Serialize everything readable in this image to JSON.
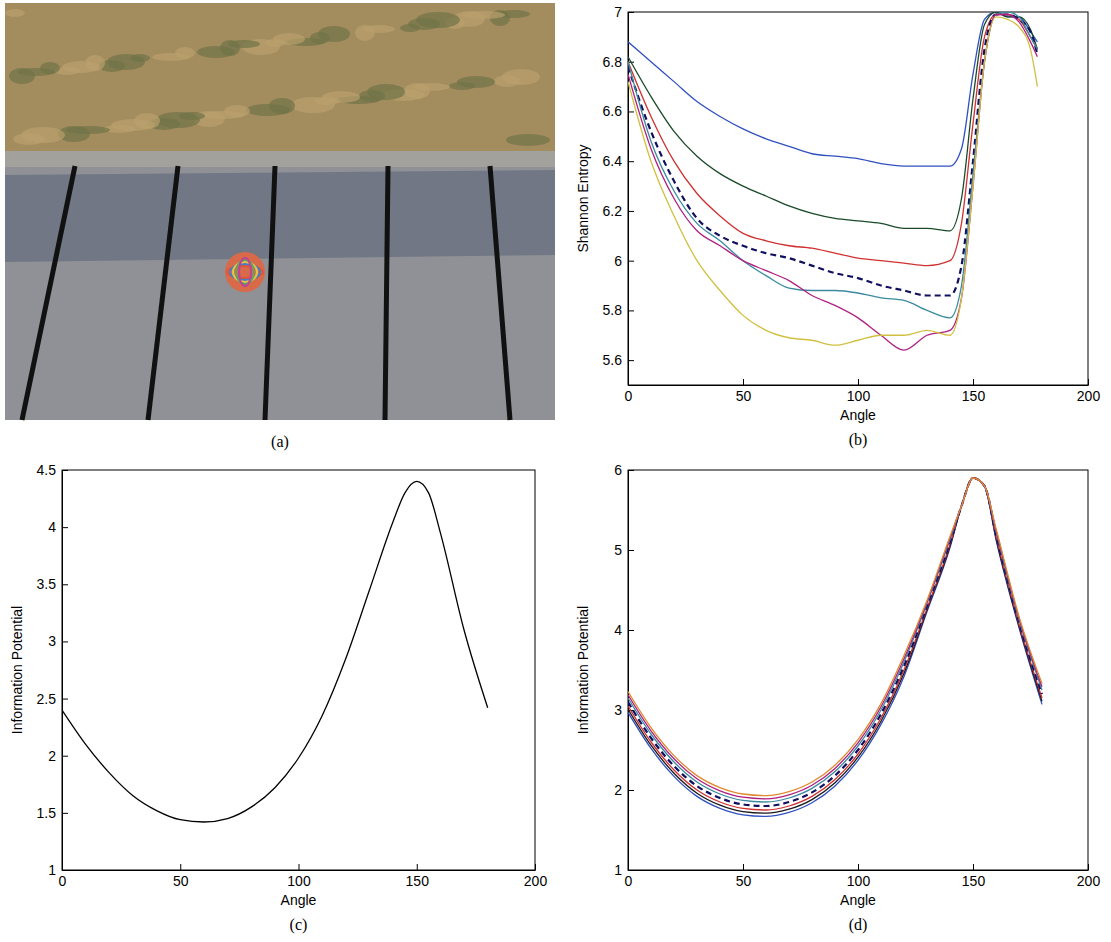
{
  "photo": {
    "caption": "(a)"
  },
  "chart_data": [
    {
      "type": "line",
      "caption": "(b)",
      "x_label": "Angle",
      "y_label": "Shannon Entropy",
      "xlim": [
        0,
        200
      ],
      "ylim": [
        5.5,
        7
      ],
      "xticks": [
        0,
        50,
        100,
        150,
        200
      ],
      "yticks": [
        5.6,
        5.8,
        6,
        6.2,
        6.4,
        6.6,
        6.8,
        7
      ],
      "x": [
        0,
        10,
        20,
        30,
        40,
        50,
        60,
        70,
        80,
        90,
        100,
        110,
        120,
        130,
        140,
        145,
        150,
        155,
        160,
        165,
        170,
        175,
        178
      ],
      "series": [
        {
          "color": "#3050c0",
          "line_style": "solid",
          "values": [
            6.88,
            6.8,
            6.72,
            6.64,
            6.58,
            6.53,
            6.49,
            6.46,
            6.43,
            6.42,
            6.41,
            6.39,
            6.38,
            6.38,
            6.38,
            6.45,
            6.75,
            6.97,
            7.0,
            6.98,
            6.98,
            6.92,
            6.88
          ]
        },
        {
          "color": "#1a4a2a",
          "line_style": "solid",
          "values": [
            6.82,
            6.66,
            6.52,
            6.42,
            6.35,
            6.3,
            6.26,
            6.22,
            6.19,
            6.17,
            6.16,
            6.15,
            6.13,
            6.13,
            6.12,
            6.25,
            6.65,
            6.95,
            7.0,
            6.98,
            6.98,
            6.93,
            6.85
          ]
        },
        {
          "color": "#d03030",
          "line_style": "solid",
          "values": [
            6.8,
            6.58,
            6.4,
            6.27,
            6.18,
            6.11,
            6.08,
            6.06,
            6.05,
            6.03,
            6.01,
            6.0,
            5.99,
            5.98,
            6.0,
            6.15,
            6.55,
            6.9,
            6.99,
            6.99,
            6.97,
            6.9,
            6.85
          ]
        },
        {
          "color": "#101060",
          "line_style": "dashed",
          "values": [
            6.78,
            6.52,
            6.32,
            6.17,
            6.1,
            6.06,
            6.03,
            6.01,
            5.98,
            5.95,
            5.93,
            5.9,
            5.88,
            5.86,
            5.86,
            5.98,
            6.4,
            6.85,
            6.99,
            6.99,
            6.97,
            6.92,
            6.83
          ]
        },
        {
          "color": "#3a8aa0",
          "line_style": "solid",
          "values": [
            6.8,
            6.48,
            6.28,
            6.15,
            6.08,
            6.0,
            5.94,
            5.89,
            5.88,
            5.88,
            5.87,
            5.85,
            5.84,
            5.8,
            5.77,
            5.9,
            6.35,
            6.8,
            6.99,
            7.0,
            6.98,
            6.9,
            6.85
          ]
        },
        {
          "color": "#b02080",
          "line_style": "solid",
          "values": [
            6.75,
            6.45,
            6.25,
            6.12,
            6.06,
            6.0,
            5.96,
            5.92,
            5.86,
            5.82,
            5.77,
            5.7,
            5.64,
            5.7,
            5.72,
            5.85,
            6.3,
            6.8,
            6.99,
            6.99,
            6.96,
            6.88,
            6.82
          ]
        },
        {
          "color": "#d0c040",
          "line_style": "solid",
          "values": [
            6.72,
            6.4,
            6.18,
            6.0,
            5.88,
            5.78,
            5.72,
            5.69,
            5.68,
            5.66,
            5.68,
            5.7,
            5.7,
            5.72,
            5.7,
            5.85,
            6.3,
            6.8,
            6.98,
            6.97,
            6.94,
            6.85,
            6.7
          ]
        }
      ]
    },
    {
      "type": "line",
      "caption": "(c)",
      "x_label": "Angle",
      "y_label": "Information Potential",
      "xlim": [
        0,
        200
      ],
      "ylim": [
        1,
        4.5
      ],
      "xticks": [
        0,
        50,
        100,
        150,
        200
      ],
      "yticks": [
        1,
        1.5,
        2,
        2.5,
        3,
        3.5,
        4,
        4.5
      ],
      "x": [
        0,
        10,
        20,
        30,
        40,
        50,
        60,
        70,
        80,
        90,
        100,
        110,
        120,
        130,
        140,
        145,
        150,
        155,
        160,
        170,
        180
      ],
      "series": [
        {
          "color": "#000000",
          "line_style": "solid",
          "values": [
            2.4,
            2.1,
            1.85,
            1.65,
            1.52,
            1.44,
            1.42,
            1.45,
            1.55,
            1.72,
            1.98,
            2.35,
            2.85,
            3.45,
            4.05,
            4.3,
            4.4,
            4.3,
            3.95,
            3.1,
            2.42
          ]
        }
      ]
    },
    {
      "type": "line",
      "caption": "(d)",
      "x_label": "Angle",
      "y_label": "Information Potential",
      "xlim": [
        0,
        200
      ],
      "ylim": [
        1,
        6
      ],
      "xticks": [
        0,
        50,
        100,
        150,
        200
      ],
      "yticks": [
        1,
        2,
        3,
        4,
        5,
        6
      ],
      "x": [
        0,
        10,
        20,
        30,
        40,
        50,
        60,
        70,
        80,
        90,
        100,
        110,
        120,
        130,
        140,
        145,
        150,
        155,
        160,
        170,
        180
      ],
      "series": [
        {
          "color": "#3050c0",
          "line_style": "solid",
          "values": [
            2.97,
            2.52,
            2.17,
            1.92,
            1.77,
            1.69,
            1.67,
            1.72,
            1.84,
            2.05,
            2.37,
            2.82,
            3.42,
            4.23,
            5.03,
            5.55,
            5.9,
            5.8,
            5.13,
            4.03,
            3.07
          ]
        },
        {
          "color": "#1a1a1a",
          "line_style": "solid",
          "values": [
            3.01,
            2.56,
            2.21,
            1.96,
            1.81,
            1.73,
            1.71,
            1.76,
            1.88,
            2.09,
            2.41,
            2.86,
            3.46,
            4.25,
            5.05,
            5.55,
            5.9,
            5.8,
            5.15,
            4.05,
            3.11
          ]
        },
        {
          "color": "#d03030",
          "line_style": "solid",
          "values": [
            3.05,
            2.6,
            2.25,
            2.0,
            1.85,
            1.77,
            1.75,
            1.8,
            1.92,
            2.13,
            2.45,
            2.9,
            3.5,
            4.27,
            5.07,
            5.55,
            5.9,
            5.8,
            5.17,
            4.07,
            3.15
          ]
        },
        {
          "color": "#101060",
          "line_style": "dashed",
          "values": [
            3.1,
            2.65,
            2.3,
            2.05,
            1.9,
            1.82,
            1.8,
            1.85,
            1.97,
            2.18,
            2.5,
            2.95,
            3.55,
            4.3,
            5.1,
            5.55,
            5.9,
            5.8,
            5.2,
            4.1,
            3.2
          ]
        },
        {
          "color": "#3a8aa0",
          "line_style": "solid",
          "values": [
            3.15,
            2.7,
            2.35,
            2.1,
            1.95,
            1.87,
            1.85,
            1.9,
            2.02,
            2.23,
            2.55,
            3.0,
            3.6,
            4.33,
            5.13,
            5.55,
            5.9,
            5.8,
            5.23,
            4.13,
            3.25
          ]
        },
        {
          "color": "#b02080",
          "line_style": "solid",
          "values": [
            3.19,
            2.74,
            2.39,
            2.14,
            1.99,
            1.91,
            1.89,
            1.94,
            2.06,
            2.27,
            2.59,
            3.04,
            3.64,
            4.35,
            5.15,
            5.55,
            5.9,
            5.8,
            5.25,
            4.15,
            3.29
          ]
        },
        {
          "color": "#e08a30",
          "line_style": "solid",
          "values": [
            3.23,
            2.78,
            2.43,
            2.18,
            2.03,
            1.95,
            1.93,
            1.98,
            2.1,
            2.31,
            2.63,
            3.08,
            3.68,
            4.37,
            5.17,
            5.55,
            5.9,
            5.8,
            5.27,
            4.17,
            3.33
          ]
        }
      ]
    }
  ]
}
